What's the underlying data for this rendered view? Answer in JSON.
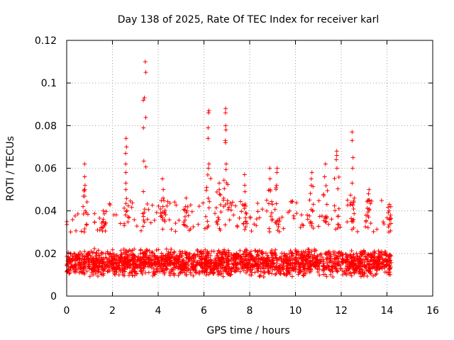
{
  "chart_data": {
    "type": "scatter",
    "title": "Day 138 of 2025, Rate Of TEC Index for receiver karl",
    "xlabel": "GPS time / hours",
    "ylabel": "ROTI / TECUs",
    "xlim": [
      0,
      16
    ],
    "ylim": [
      0,
      0.12
    ],
    "xticks": [
      0,
      2,
      4,
      6,
      8,
      10,
      12,
      14,
      16
    ],
    "xtick_labels": [
      "0",
      "2",
      "4",
      "6",
      "8",
      "10",
      "12",
      "14",
      "16"
    ],
    "yticks": [
      0,
      0.02,
      0.04,
      0.06,
      0.08,
      0.1,
      0.12
    ],
    "ytick_labels": [
      "0",
      "0.02",
      "0.04",
      "0.06",
      "0.08",
      "0.1",
      "0.12"
    ],
    "grid": true,
    "marker": "+",
    "marker_color": "#ff0000",
    "data_time_range_hours": [
      0,
      14.2
    ],
    "baseline_band": [
      0.005,
      0.03
    ],
    "spikes": [
      {
        "x": 0.8,
        "values": [
          0.062,
          0.056,
          0.052,
          0.05
        ]
      },
      {
        "x": 1.6,
        "values": [
          0.04,
          0.035
        ]
      },
      {
        "x": 2.6,
        "values": [
          0.074,
          0.07,
          0.067,
          0.062,
          0.058,
          0.053,
          0.05
        ]
      },
      {
        "x": 3.45,
        "values": [
          0.11,
          0.105
        ]
      },
      {
        "x": 4.2,
        "values": [
          0.055,
          0.05,
          0.046,
          0.042
        ]
      },
      {
        "x": 5.2,
        "values": [
          0.046,
          0.042
        ]
      },
      {
        "x": 6.2,
        "values": [
          0.087,
          0.086,
          0.079,
          0.074,
          0.062,
          0.06
        ]
      },
      {
        "x": 6.65,
        "values": [
          0.053,
          0.05
        ]
      },
      {
        "x": 6.95,
        "values": [
          0.088,
          0.086,
          0.08,
          0.078,
          0.073,
          0.072,
          0.062
        ]
      },
      {
        "x": 7.8,
        "values": [
          0.057,
          0.052,
          0.049
        ]
      },
      {
        "x": 8.9,
        "values": [
          0.06,
          0.055,
          0.05
        ]
      },
      {
        "x": 9.2,
        "values": [
          0.06,
          0.058,
          0.052
        ]
      },
      {
        "x": 10.7,
        "values": [
          0.058,
          0.055,
          0.052
        ]
      },
      {
        "x": 11.3,
        "values": [
          0.062,
          0.056
        ]
      },
      {
        "x": 11.8,
        "values": [
          0.068,
          0.066,
          0.064,
          0.06
        ]
      },
      {
        "x": 12.5,
        "values": [
          0.077,
          0.073,
          0.065,
          0.06,
          0.053
        ]
      },
      {
        "x": 13.2,
        "values": [
          0.05,
          0.048,
          0.045
        ]
      },
      {
        "x": 14.1,
        "values": [
          0.043,
          0.04
        ]
      }
    ]
  }
}
